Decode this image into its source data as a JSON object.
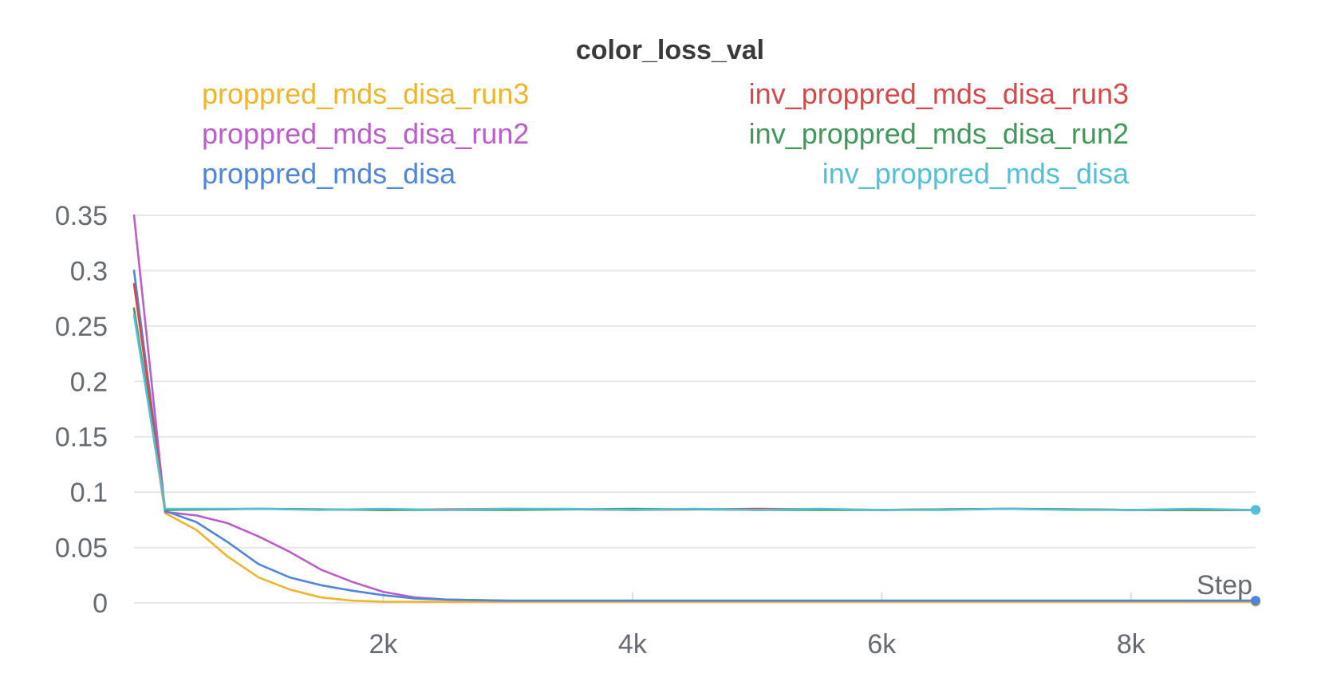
{
  "chart_data": {
    "type": "line",
    "title": "color_loss_val",
    "xlabel": "Step",
    "ylabel": "",
    "xlim": [
      0,
      9000
    ],
    "ylim": [
      0,
      0.35
    ],
    "yticks": [
      0,
      0.05,
      0.1,
      0.15,
      0.2,
      0.25,
      0.3,
      0.35
    ],
    "ytick_labels": [
      "0",
      "0.05",
      "0.1",
      "0.15",
      "0.2",
      "0.25",
      "0.3",
      "0.35"
    ],
    "xticks": [
      2000,
      4000,
      6000,
      8000
    ],
    "xtick_labels": [
      "2k",
      "4k",
      "6k",
      "8k"
    ],
    "grid": true,
    "legend_position": "top",
    "series": [
      {
        "name": "proppred_mds_disa_run3",
        "color": "#f0b429",
        "points": [
          [
            0,
            0.265
          ],
          [
            250,
            0.081
          ],
          [
            500,
            0.066
          ],
          [
            750,
            0.042
          ],
          [
            1000,
            0.023
          ],
          [
            1250,
            0.012
          ],
          [
            1500,
            0.005
          ],
          [
            1750,
            0.002
          ],
          [
            2000,
            0.001
          ],
          [
            2250,
            0.001
          ],
          [
            2500,
            0.001
          ],
          [
            3000,
            0.001
          ],
          [
            4000,
            0.001
          ],
          [
            5000,
            0.001
          ],
          [
            6000,
            0.001
          ],
          [
            7000,
            0.001
          ],
          [
            8000,
            0.001
          ],
          [
            9000,
            0.001
          ]
        ]
      },
      {
        "name": "proppred_mds_disa_run2",
        "color": "#bd5dcc",
        "points": [
          [
            0,
            0.35
          ],
          [
            250,
            0.082
          ],
          [
            500,
            0.079
          ],
          [
            750,
            0.072
          ],
          [
            1000,
            0.06
          ],
          [
            1250,
            0.046
          ],
          [
            1500,
            0.03
          ],
          [
            1750,
            0.019
          ],
          [
            2000,
            0.01
          ],
          [
            2250,
            0.005
          ],
          [
            2500,
            0.003
          ],
          [
            3000,
            0.002
          ],
          [
            4000,
            0.002
          ],
          [
            5000,
            0.002
          ],
          [
            6000,
            0.002
          ],
          [
            7000,
            0.002
          ],
          [
            8000,
            0.002
          ],
          [
            9000,
            0.002
          ]
        ]
      },
      {
        "name": "proppred_mds_disa",
        "color": "#4f86da",
        "points": [
          [
            0,
            0.3
          ],
          [
            250,
            0.083
          ],
          [
            500,
            0.073
          ],
          [
            750,
            0.055
          ],
          [
            1000,
            0.035
          ],
          [
            1250,
            0.023
          ],
          [
            1500,
            0.016
          ],
          [
            1750,
            0.011
          ],
          [
            2000,
            0.007
          ],
          [
            2250,
            0.004
          ],
          [
            2500,
            0.003
          ],
          [
            3000,
            0.002
          ],
          [
            4000,
            0.002
          ],
          [
            5000,
            0.002
          ],
          [
            6000,
            0.002
          ],
          [
            7000,
            0.002
          ],
          [
            8000,
            0.002
          ],
          [
            9000,
            0.002
          ]
        ]
      },
      {
        "name": "inv_proppred_mds_disa_run3",
        "color": "#d94848",
        "points": [
          [
            0,
            0.288
          ],
          [
            250,
            0.084
          ],
          [
            1000,
            0.085
          ],
          [
            2000,
            0.084
          ],
          [
            3000,
            0.085
          ],
          [
            4000,
            0.084
          ],
          [
            5000,
            0.085
          ],
          [
            6000,
            0.084
          ],
          [
            7000,
            0.085
          ],
          [
            8000,
            0.084
          ],
          [
            9000,
            0.084
          ]
        ]
      },
      {
        "name": "inv_proppred_mds_disa_run2",
        "color": "#3f9a5a",
        "points": [
          [
            0,
            0.266
          ],
          [
            250,
            0.084
          ],
          [
            1000,
            0.085
          ],
          [
            2000,
            0.084
          ],
          [
            3000,
            0.084
          ],
          [
            4000,
            0.085
          ],
          [
            5000,
            0.084
          ],
          [
            6000,
            0.084
          ],
          [
            7000,
            0.085
          ],
          [
            8000,
            0.084
          ],
          [
            9000,
            0.084
          ]
        ]
      },
      {
        "name": "inv_proppred_mds_disa",
        "color": "#52c0d8",
        "points": [
          [
            0,
            0.26
          ],
          [
            250,
            0.085
          ],
          [
            500,
            0.085
          ],
          [
            1000,
            0.085
          ],
          [
            1500,
            0.084
          ],
          [
            2000,
            0.085
          ],
          [
            2500,
            0.084
          ],
          [
            3000,
            0.085
          ],
          [
            3500,
            0.085
          ],
          [
            4000,
            0.084
          ],
          [
            4500,
            0.085
          ],
          [
            5000,
            0.084
          ],
          [
            5500,
            0.085
          ],
          [
            6000,
            0.084
          ],
          [
            6500,
            0.084
          ],
          [
            7000,
            0.085
          ],
          [
            7500,
            0.084
          ],
          [
            8000,
            0.084
          ],
          [
            8500,
            0.085
          ],
          [
            9000,
            0.084
          ]
        ]
      }
    ]
  }
}
